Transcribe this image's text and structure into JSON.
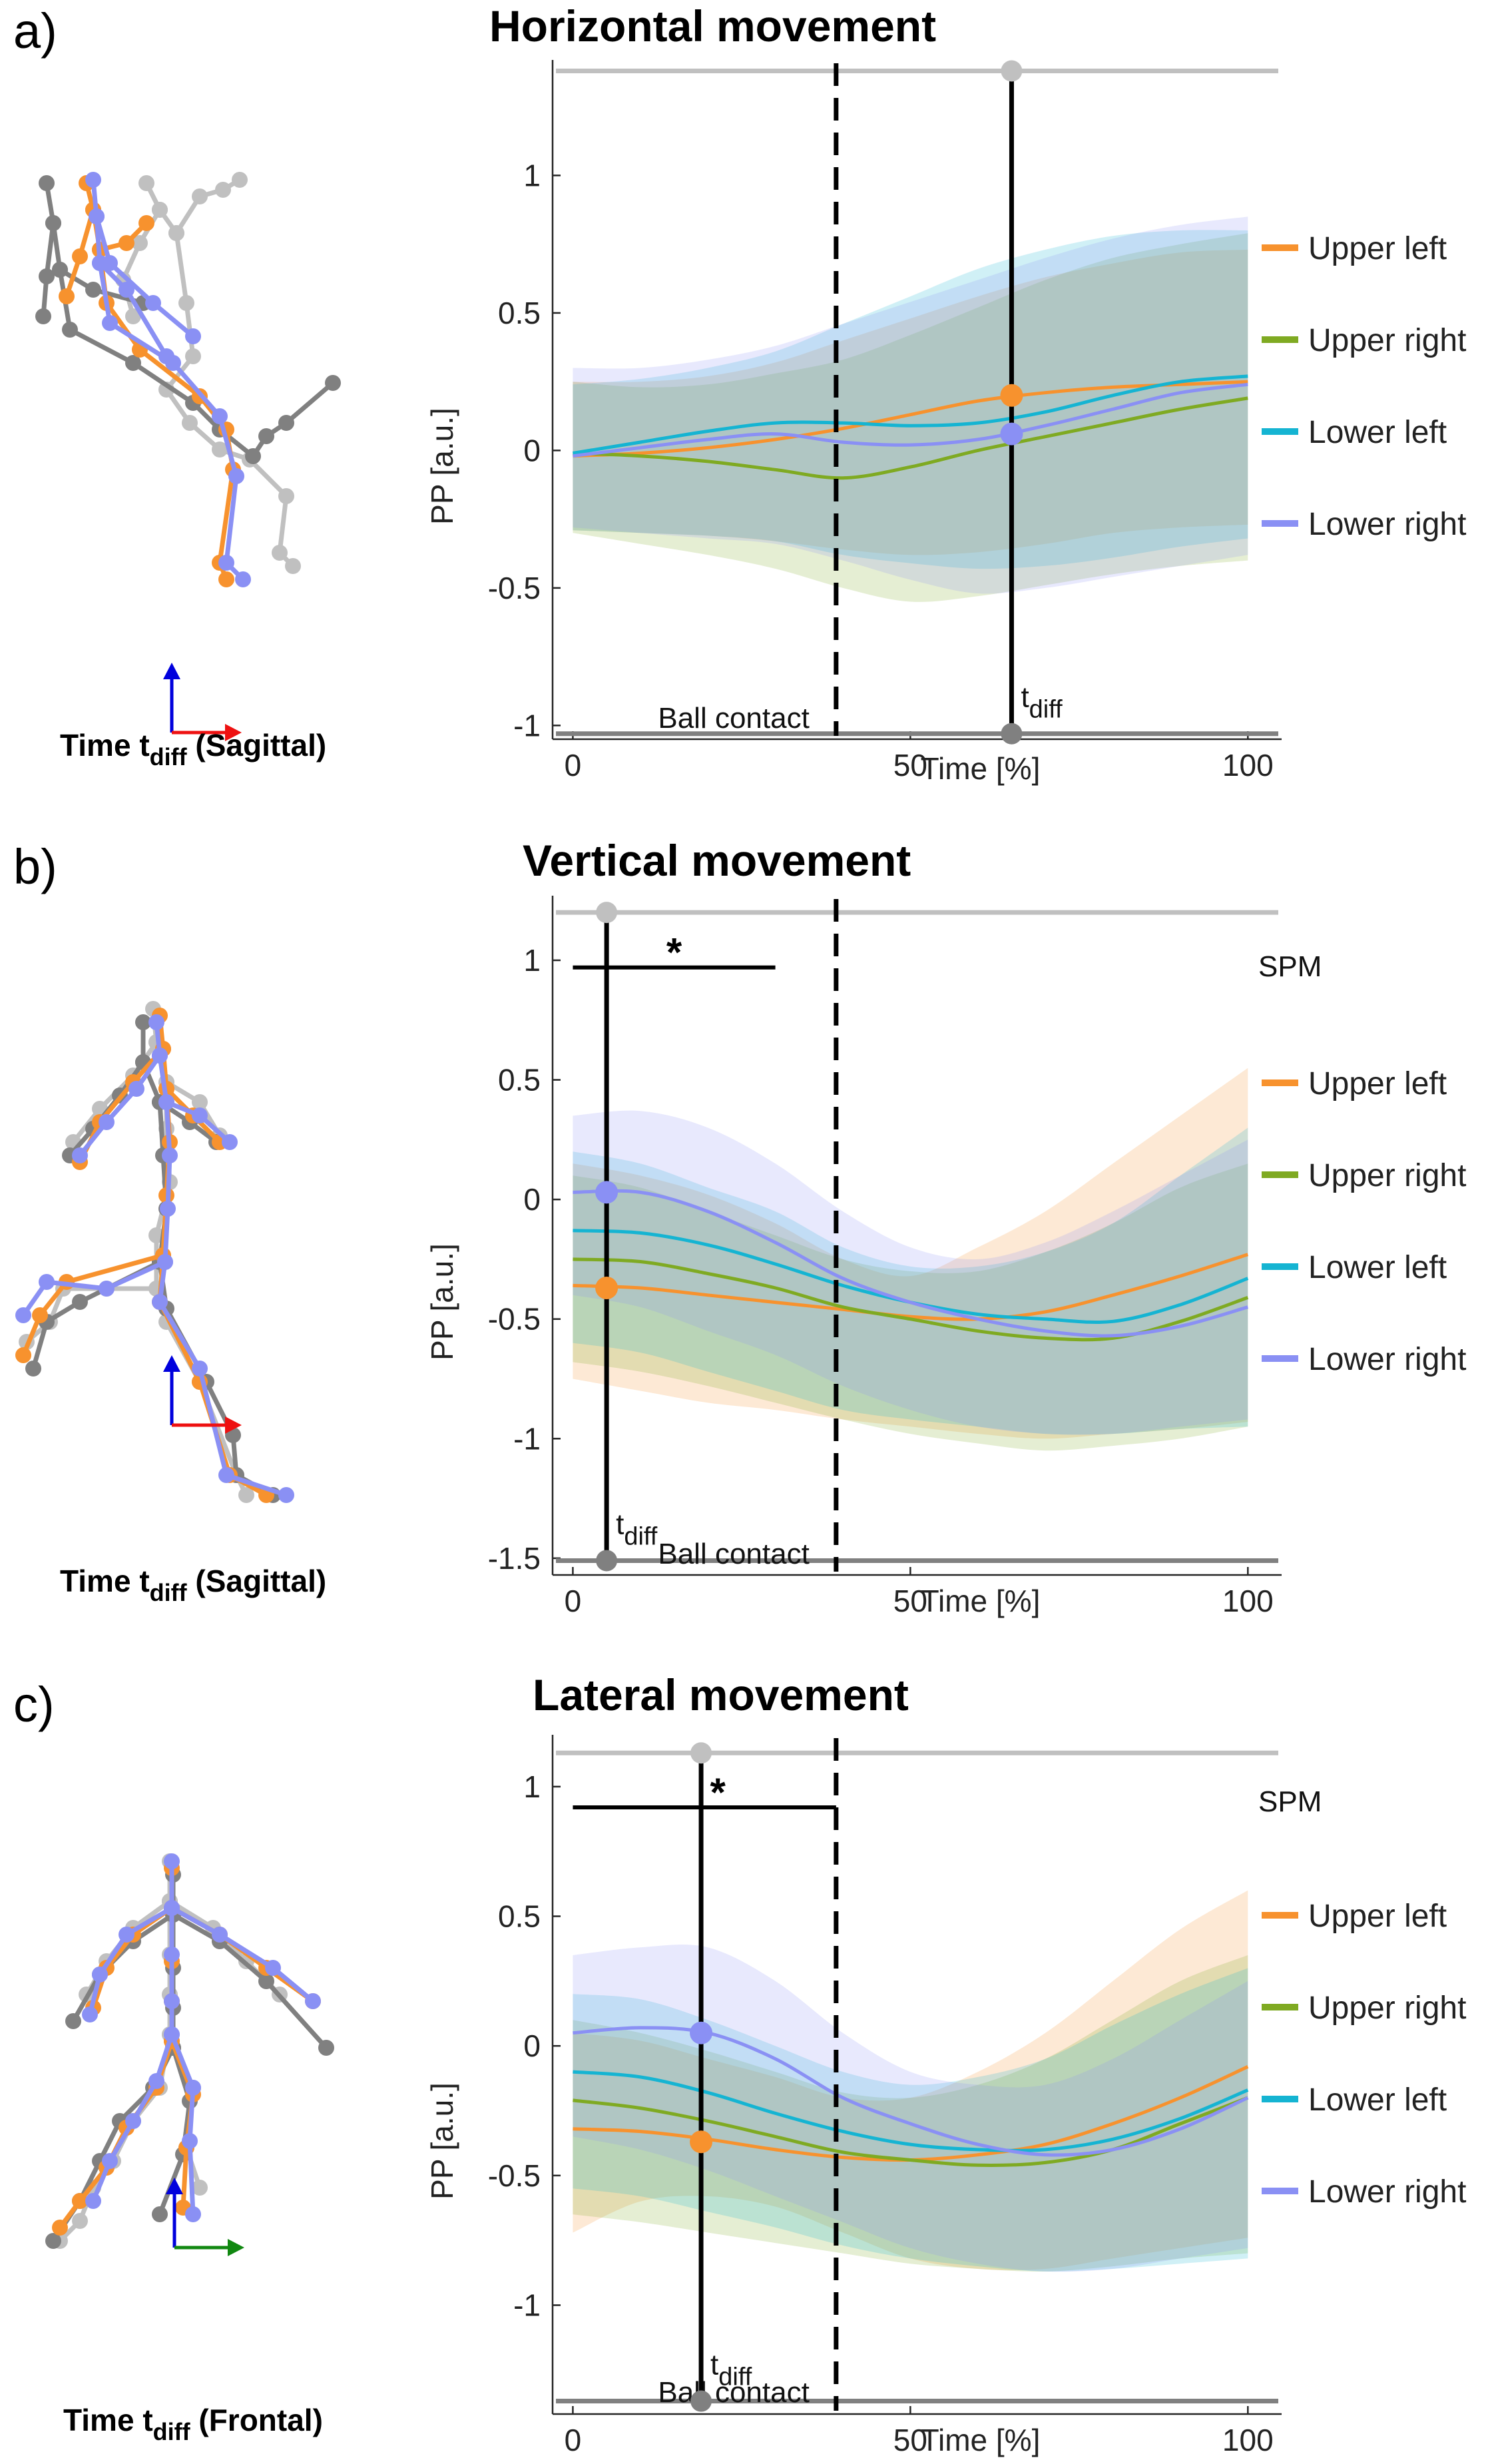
{
  "figure": {
    "legend_items": [
      "Upper left",
      "Upper right",
      "Lower left",
      "Lower right"
    ],
    "colors": {
      "upper_left": "#F7922E",
      "upper_right": "#7FAA22",
      "lower_left": "#15B4D2",
      "lower_right": "#8A90F4",
      "light_gray": "#C0C0C0",
      "dark_gray": "#808080",
      "black": "#000000",
      "axis_up": "#0000DD",
      "axis_right": "#EE1111",
      "axis_green": "#118811"
    }
  },
  "panels": [
    {
      "label": "a)",
      "caption": {
        "prefix": "Time t",
        "subscript": "diff",
        "suffix": " (Sagittal)"
      },
      "stick_view": "sagittal-1",
      "legend_note": ""
    },
    {
      "label": "b)",
      "caption": {
        "prefix": "Time t",
        "subscript": "diff",
        "suffix": " (Sagittal)"
      },
      "stick_view": "sagittal-2",
      "legend_note": "SPM"
    },
    {
      "label": "c)",
      "caption": {
        "prefix": "Time t",
        "subscript": "diff",
        "suffix": " (Frontal)"
      },
      "stick_view": "frontal",
      "legend_note": "SPM"
    }
  ],
  "chart_data": [
    {
      "type": "line",
      "title": "Horizontal movement",
      "xlabel": "Time [%]",
      "ylabel": "PP [a.u.]",
      "xlim": [
        -3,
        105
      ],
      "ylim": [
        -1.05,
        1.42
      ],
      "xticks": [
        0,
        50,
        100
      ],
      "yticks": [
        1,
        0.5,
        0,
        -0.5,
        -1
      ],
      "ball_contact_x": 39,
      "ball_contact_label": "Ball contact",
      "t_diff_x": 65,
      "t_diff_label": {
        "base": "t",
        "sub": "diff"
      },
      "top_line_y": 1.38,
      "bottom_line_y": -1.03,
      "spm_cluster": null,
      "markers": [
        {
          "series": "Upper left",
          "x": 65,
          "y": 0.2
        },
        {
          "series": "Lower right",
          "x": 65,
          "y": 0.06
        }
      ],
      "x": [
        0,
        10,
        20,
        30,
        40,
        50,
        60,
        70,
        80,
        90,
        100
      ],
      "series": [
        {
          "name": "Upper left",
          "values": [
            -0.02,
            -0.01,
            0.01,
            0.04,
            0.08,
            0.13,
            0.18,
            0.21,
            0.23,
            0.24,
            0.25
          ],
          "upper": [
            0.25,
            0.25,
            0.27,
            0.32,
            0.4,
            0.48,
            0.56,
            0.63,
            0.68,
            0.72,
            0.73
          ],
          "lower": [
            -0.29,
            -0.3,
            -0.31,
            -0.33,
            -0.36,
            -0.38,
            -0.37,
            -0.34,
            -0.3,
            -0.28,
            -0.27
          ]
        },
        {
          "name": "Upper right",
          "values": [
            -0.01,
            -0.02,
            -0.04,
            -0.07,
            -0.1,
            -0.06,
            0.0,
            0.05,
            0.1,
            0.15,
            0.19
          ],
          "upper": [
            0.25,
            0.23,
            0.24,
            0.28,
            0.33,
            0.42,
            0.52,
            0.62,
            0.7,
            0.75,
            0.79
          ],
          "lower": [
            -0.3,
            -0.34,
            -0.38,
            -0.43,
            -0.5,
            -0.55,
            -0.53,
            -0.49,
            -0.45,
            -0.42,
            -0.4
          ]
        },
        {
          "name": "Lower left",
          "values": [
            -0.01,
            0.03,
            0.07,
            0.1,
            0.1,
            0.09,
            0.1,
            0.14,
            0.2,
            0.25,
            0.27
          ],
          "upper": [
            0.24,
            0.26,
            0.3,
            0.36,
            0.46,
            0.56,
            0.66,
            0.73,
            0.78,
            0.8,
            0.8
          ],
          "lower": [
            -0.29,
            -0.3,
            -0.31,
            -0.33,
            -0.38,
            -0.41,
            -0.43,
            -0.42,
            -0.39,
            -0.35,
            -0.32
          ]
        },
        {
          "name": "Lower right",
          "values": [
            -0.02,
            0.01,
            0.04,
            0.06,
            0.03,
            0.02,
            0.04,
            0.09,
            0.15,
            0.21,
            0.24
          ],
          "upper": [
            0.3,
            0.3,
            0.33,
            0.38,
            0.46,
            0.54,
            0.62,
            0.7,
            0.77,
            0.82,
            0.85
          ],
          "lower": [
            -0.28,
            -0.3,
            -0.32,
            -0.34,
            -0.4,
            -0.47,
            -0.52,
            -0.5,
            -0.46,
            -0.42,
            -0.38
          ]
        }
      ]
    },
    {
      "type": "line",
      "title": "Vertical movement",
      "xlabel": "Time [%]",
      "ylabel": "PP [a.u.]",
      "xlim": [
        -3,
        105
      ],
      "ylim": [
        -1.57,
        1.27
      ],
      "xticks": [
        0,
        50,
        100
      ],
      "yticks": [
        1,
        0.5,
        0,
        -0.5,
        -1,
        -1.5
      ],
      "ball_contact_x": 39,
      "ball_contact_label": "Ball contact",
      "t_diff_x": 5,
      "t_diff_label": {
        "base": "t",
        "sub": "diff"
      },
      "top_line_y": 1.2,
      "bottom_line_y": -1.51,
      "spm_cluster": {
        "x_start": 0,
        "x_end": 30,
        "y": 0.97,
        "label": "*"
      },
      "markers": [
        {
          "series": "Lower right",
          "x": 5,
          "y": 0.03
        },
        {
          "series": "Upper left",
          "x": 5,
          "y": -0.37
        }
      ],
      "x": [
        0,
        10,
        20,
        30,
        40,
        50,
        60,
        70,
        80,
        90,
        100
      ],
      "series": [
        {
          "name": "Upper left",
          "values": [
            -0.36,
            -0.37,
            -0.4,
            -0.43,
            -0.46,
            -0.49,
            -0.5,
            -0.47,
            -0.4,
            -0.32,
            -0.23
          ],
          "upper": [
            0.15,
            0.1,
            0.02,
            -0.1,
            -0.25,
            -0.32,
            -0.2,
            -0.05,
            0.15,
            0.35,
            0.55
          ],
          "lower": [
            -0.75,
            -0.8,
            -0.85,
            -0.88,
            -0.92,
            -0.95,
            -0.98,
            -1.0,
            -0.98,
            -0.96,
            -0.93
          ]
        },
        {
          "name": "Upper right",
          "values": [
            -0.25,
            -0.26,
            -0.31,
            -0.37,
            -0.45,
            -0.5,
            -0.55,
            -0.58,
            -0.58,
            -0.51,
            -0.41
          ],
          "upper": [
            0.1,
            0.05,
            -0.05,
            -0.15,
            -0.25,
            -0.3,
            -0.3,
            -0.22,
            -0.1,
            0.05,
            0.15
          ],
          "lower": [
            -0.68,
            -0.72,
            -0.78,
            -0.85,
            -0.92,
            -0.98,
            -1.02,
            -1.05,
            -1.03,
            -1.0,
            -0.95
          ]
        },
        {
          "name": "Lower left",
          "values": [
            -0.13,
            -0.14,
            -0.19,
            -0.27,
            -0.36,
            -0.43,
            -0.48,
            -0.5,
            -0.51,
            -0.44,
            -0.33
          ],
          "upper": [
            0.2,
            0.15,
            0.05,
            -0.05,
            -0.2,
            -0.28,
            -0.28,
            -0.22,
            -0.1,
            0.1,
            0.3
          ],
          "lower": [
            -0.6,
            -0.64,
            -0.72,
            -0.8,
            -0.88,
            -0.92,
            -0.95,
            -0.98,
            -0.98,
            -0.96,
            -0.95
          ]
        },
        {
          "name": "Lower right",
          "values": [
            0.03,
            0.03,
            -0.05,
            -0.18,
            -0.33,
            -0.43,
            -0.5,
            -0.55,
            -0.57,
            -0.53,
            -0.45
          ],
          "upper": [
            0.35,
            0.37,
            0.3,
            0.15,
            -0.05,
            -0.2,
            -0.25,
            -0.18,
            -0.05,
            0.1,
            0.25
          ],
          "lower": [
            -0.4,
            -0.45,
            -0.55,
            -0.65,
            -0.78,
            -0.88,
            -0.95,
            -0.98,
            -0.98,
            -0.95,
            -0.92
          ]
        }
      ]
    },
    {
      "type": "line",
      "title": "Lateral movement",
      "xlabel": "Time [%]",
      "ylabel": "PP [a.u.]",
      "xlim": [
        -3,
        105
      ],
      "ylim": [
        -1.42,
        1.2
      ],
      "xticks": [
        0,
        50,
        100
      ],
      "yticks": [
        1,
        0.5,
        0,
        -0.5,
        -1
      ],
      "ball_contact_x": 39,
      "ball_contact_label": "Ball contact",
      "t_diff_x": 19,
      "t_diff_label": {
        "base": "t",
        "sub": "diff"
      },
      "top_line_y": 1.13,
      "bottom_line_y": -1.37,
      "spm_cluster": {
        "x_start": 0,
        "x_end": 39,
        "y": 0.92,
        "label": "*"
      },
      "markers": [
        {
          "series": "Lower right",
          "x": 19,
          "y": 0.05
        },
        {
          "series": "Upper left",
          "x": 19,
          "y": -0.37
        }
      ],
      "x": [
        0,
        10,
        20,
        30,
        40,
        50,
        60,
        70,
        80,
        90,
        100
      ],
      "series": [
        {
          "name": "Upper left",
          "values": [
            -0.32,
            -0.33,
            -0.36,
            -0.4,
            -0.43,
            -0.44,
            -0.42,
            -0.38,
            -0.3,
            -0.2,
            -0.08
          ],
          "upper": [
            0.05,
            0.02,
            -0.05,
            -0.12,
            -0.2,
            -0.2,
            -0.1,
            0.05,
            0.25,
            0.45,
            0.6
          ],
          "lower": [
            -0.72,
            -0.6,
            -0.58,
            -0.62,
            -0.72,
            -0.82,
            -0.86,
            -0.86,
            -0.82,
            -0.78,
            -0.74
          ]
        },
        {
          "name": "Upper right",
          "values": [
            -0.21,
            -0.24,
            -0.29,
            -0.35,
            -0.41,
            -0.44,
            -0.46,
            -0.45,
            -0.4,
            -0.3,
            -0.2
          ],
          "upper": [
            0.1,
            0.05,
            -0.02,
            -0.1,
            -0.18,
            -0.2,
            -0.15,
            -0.05,
            0.1,
            0.25,
            0.35
          ],
          "lower": [
            -0.65,
            -0.68,
            -0.72,
            -0.76,
            -0.8,
            -0.84,
            -0.86,
            -0.87,
            -0.85,
            -0.82,
            -0.8
          ]
        },
        {
          "name": "Lower left",
          "values": [
            -0.1,
            -0.12,
            -0.18,
            -0.26,
            -0.33,
            -0.38,
            -0.4,
            -0.4,
            -0.36,
            -0.28,
            -0.17
          ],
          "upper": [
            0.2,
            0.18,
            0.1,
            0.0,
            -0.1,
            -0.15,
            -0.12,
            -0.05,
            0.08,
            0.2,
            0.3
          ],
          "lower": [
            -0.55,
            -0.58,
            -0.64,
            -0.7,
            -0.77,
            -0.82,
            -0.85,
            -0.87,
            -0.86,
            -0.84,
            -0.82
          ]
        },
        {
          "name": "Lower right",
          "values": [
            0.05,
            0.07,
            0.05,
            -0.05,
            -0.2,
            -0.3,
            -0.38,
            -0.42,
            -0.4,
            -0.32,
            -0.2
          ],
          "upper": [
            0.35,
            0.38,
            0.38,
            0.25,
            0.05,
            -0.1,
            -0.15,
            -0.15,
            -0.05,
            0.1,
            0.25
          ],
          "lower": [
            -0.35,
            -0.4,
            -0.48,
            -0.58,
            -0.68,
            -0.78,
            -0.84,
            -0.87,
            -0.86,
            -0.82,
            -0.78
          ]
        }
      ]
    }
  ]
}
